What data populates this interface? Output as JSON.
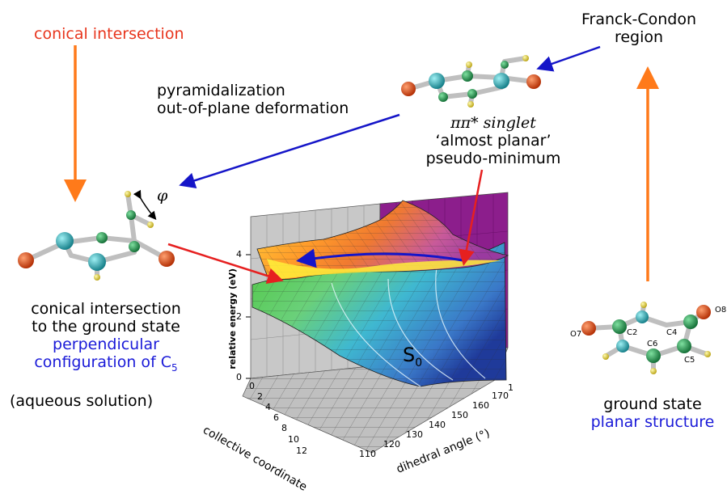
{
  "labels": {
    "conical_top": "conical intersection",
    "franck_condon": [
      "Franck-Condon",
      "region"
    ],
    "pyramidalization": [
      "pyramidalization",
      "out-of-plane deformation"
    ],
    "pipi_line1": "ππ* singlet",
    "pipi_line2": "‘almost planar’",
    "pipi_line3": "pseudo-minimum",
    "phi": "φ",
    "ci_ground": [
      "conical intersection",
      "to the ground state"
    ],
    "perp_line1": "perpendicular",
    "perp_line2": "configuration of C",
    "perp_sub": "5",
    "aqueous": "(aqueous solution)",
    "ground_state": "ground state",
    "planar": "planar structure",
    "s0": "S",
    "s0_sub": "0"
  },
  "plot": {
    "z_axis_label": "relative energy (eV)",
    "z_ticks": [
      "4",
      "2",
      "0"
    ],
    "x_axis_label": "collective coordinate",
    "x_ticks": [
      "0",
      "2",
      "4",
      "6",
      "8",
      "10",
      "12"
    ],
    "y_axis_label": "dihedral angle (°)",
    "y_ticks": [
      "110",
      "120",
      "130",
      "140",
      "150",
      "160",
      "170",
      "1"
    ]
  },
  "atoms": {
    "o7": "O7",
    "o8": "O8",
    "c2": "C2",
    "c4": "C4",
    "c5": "C5",
    "c6": "C6"
  },
  "colors": {
    "red_text": "#e8361e",
    "blue_text": "#1a1ad8",
    "orange_arrow": "#ff7a1a",
    "blue_arrow": "#1515c8",
    "red_arrow": "#e62020",
    "carbon": "#1f8c4a",
    "nitrogen": "#1aa0a8",
    "oxygen": "#d94a1a",
    "hydrogen": "#e6d43a"
  }
}
